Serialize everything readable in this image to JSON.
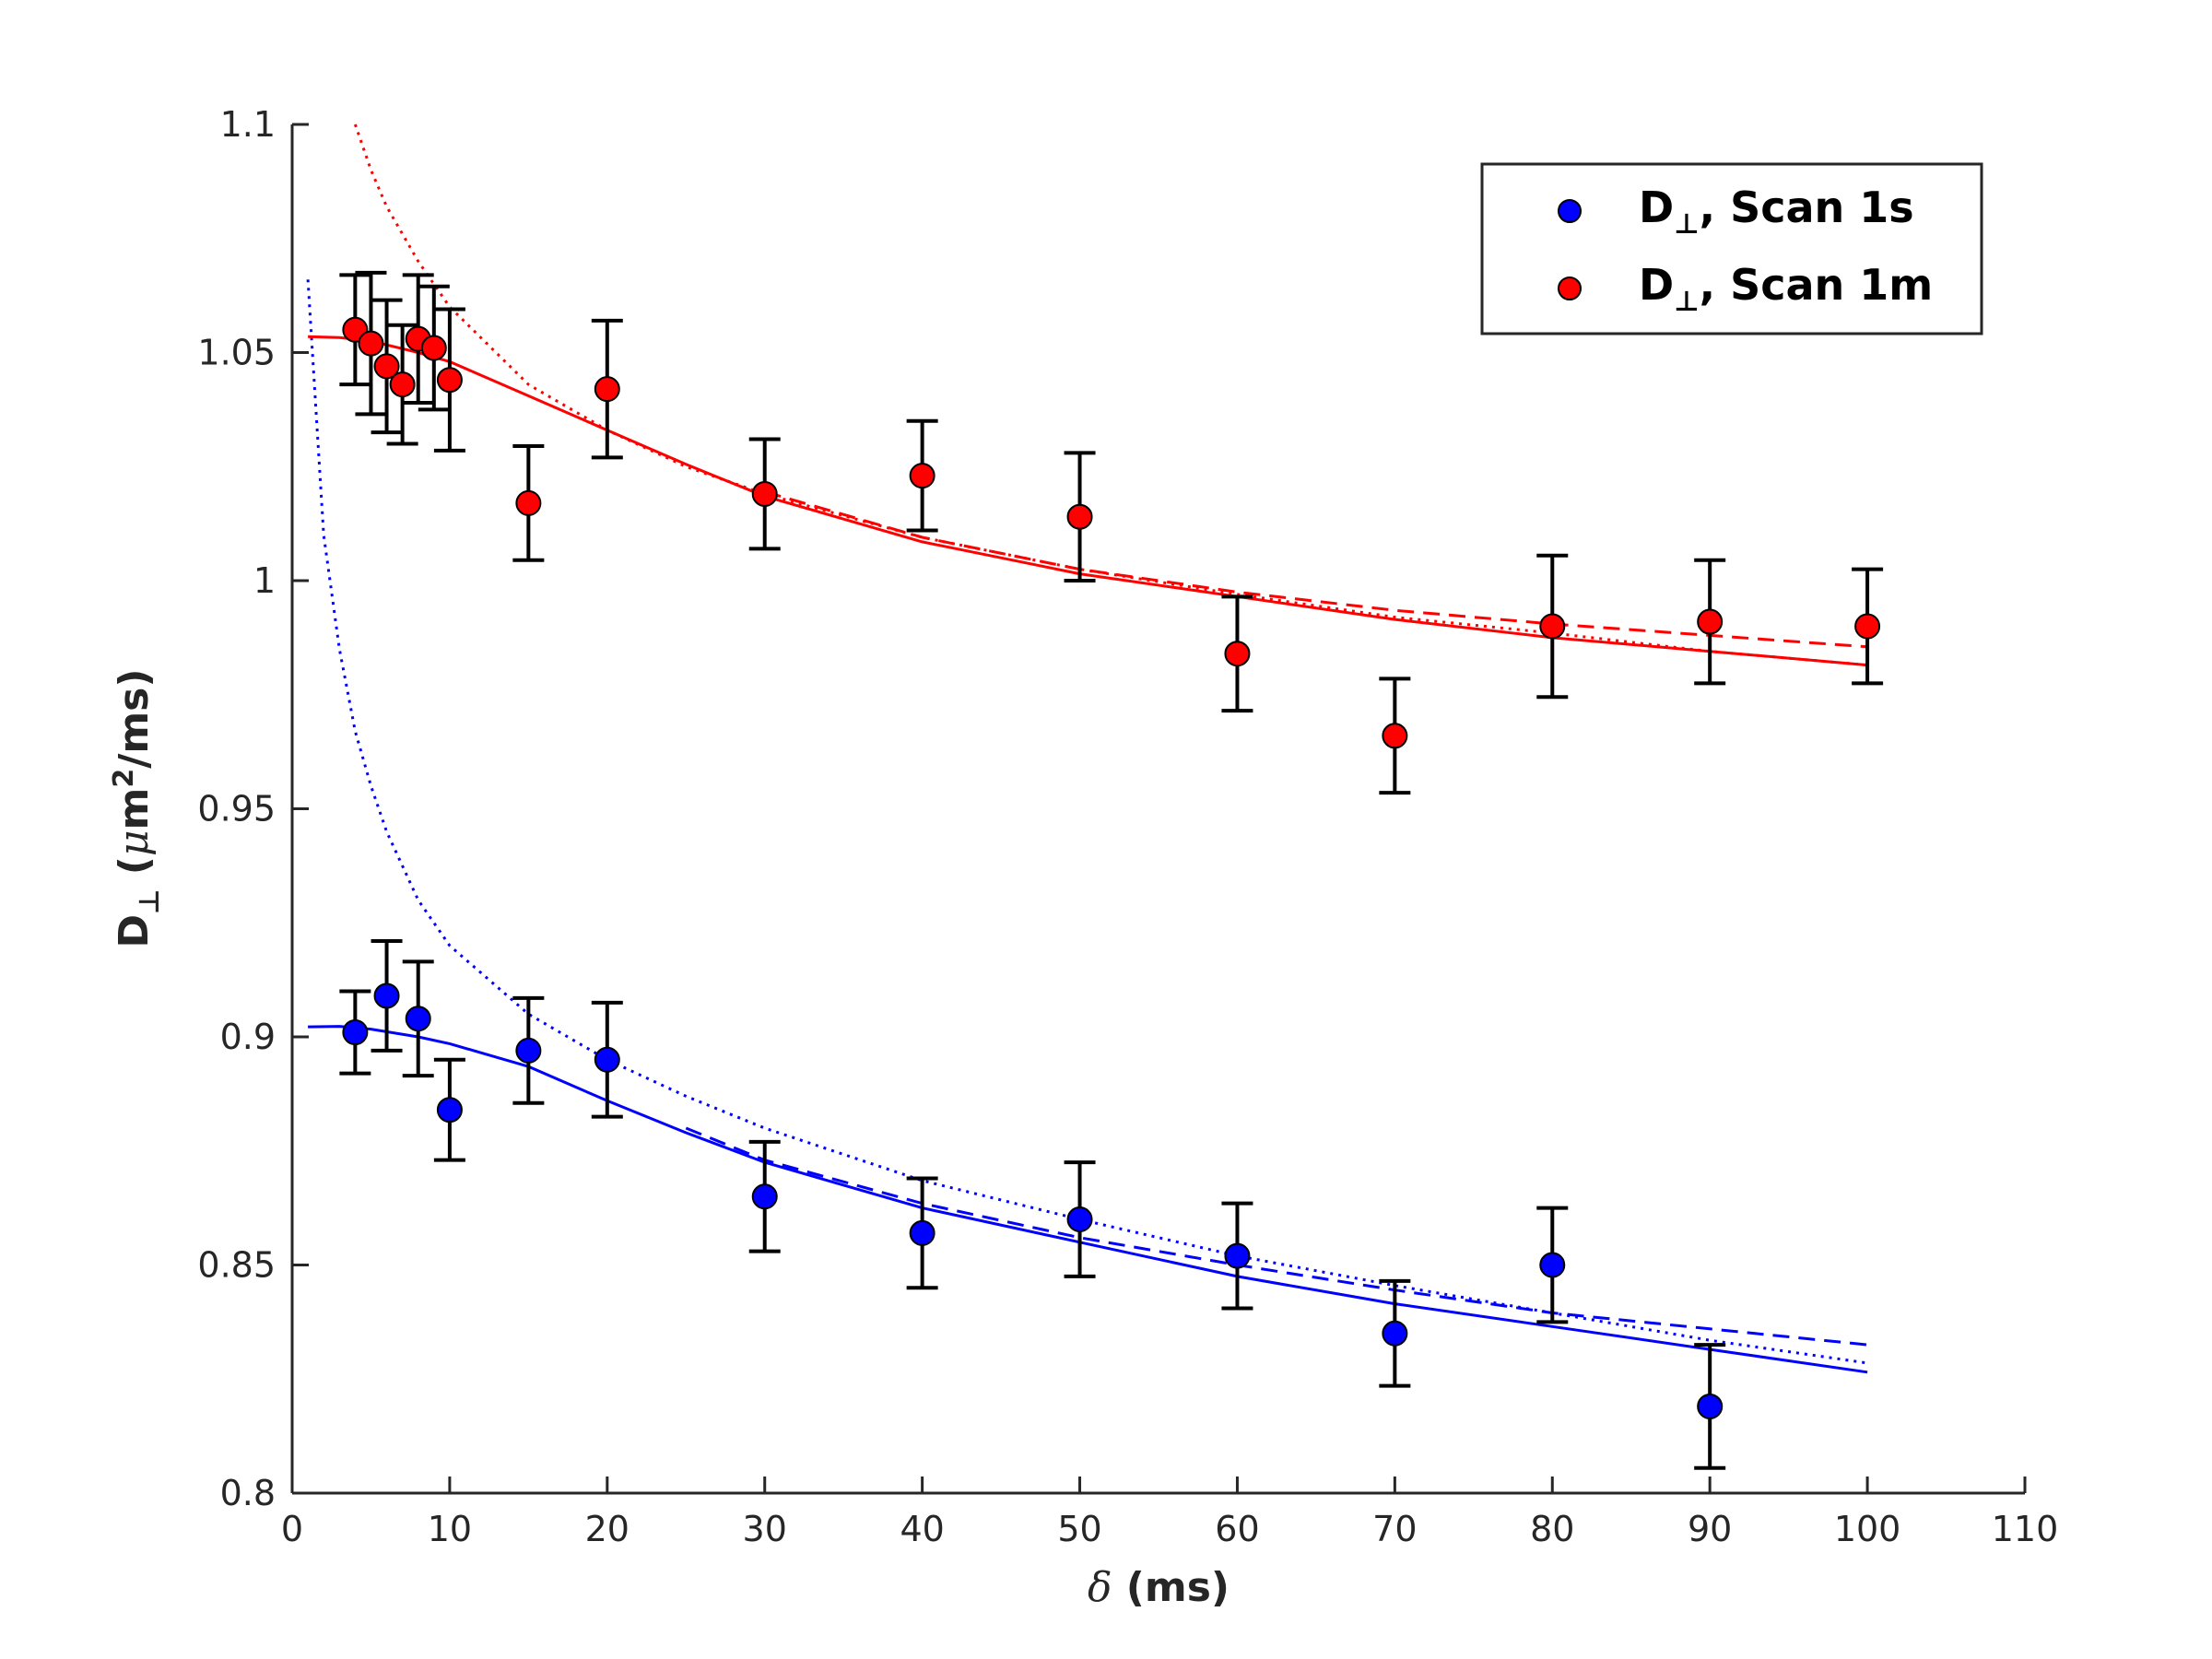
{
  "chart_data": {
    "type": "scatter",
    "title": "",
    "xlabel": {
      "symbol": "δ",
      "unit": " (ms)"
    },
    "ylabel": {
      "main": "D",
      "sub": "⊥",
      "unit_pre": " (",
      "mu": "μ",
      "unit_mid": "m",
      "sup": "2",
      "unit_post": "/ms)"
    },
    "xlim": [
      0,
      110
    ],
    "ylim": [
      0.8,
      1.1
    ],
    "xticks": [
      0,
      10,
      20,
      30,
      40,
      50,
      60,
      70,
      80,
      90,
      100,
      110
    ],
    "yticks": [
      0.8,
      0.85,
      0.9,
      0.95,
      1,
      1.05,
      1.1
    ],
    "xtick_labels": [
      "0",
      "10",
      "20",
      "30",
      "40",
      "50",
      "60",
      "70",
      "80",
      "90",
      "100",
      "110"
    ],
    "ytick_labels": [
      "0.8",
      "0.85",
      "0.9",
      "0.95",
      "1",
      "1.05",
      "1.1"
    ],
    "grid": false,
    "legend": {
      "position": "top-right",
      "entries": [
        {
          "main": "D",
          "sub": "⊥",
          "rest": ", Scan 1s",
          "color": "#0000ff"
        },
        {
          "main": "D",
          "sub": "⊥",
          "rest": ", Scan 1m",
          "color": "#ff0000"
        }
      ]
    },
    "series": [
      {
        "name": "D⊥, Scan 1s",
        "color": "#0000ff",
        "x": [
          4,
          6,
          8,
          10,
          15,
          20,
          30,
          40,
          50,
          60,
          70,
          80,
          90
        ],
        "y": [
          0.901,
          0.909,
          0.904,
          0.884,
          0.897,
          0.895,
          0.865,
          0.857,
          0.86,
          0.852,
          0.835,
          0.85,
          0.819
        ],
        "err": [
          0.009,
          0.012,
          0.0125,
          0.011,
          0.0115,
          0.0125,
          0.012,
          0.012,
          0.0125,
          0.0115,
          0.0115,
          0.0125,
          0.0135
        ],
        "fits": {
          "solid": {
            "x": [
              1,
              3,
              5,
              8,
              10,
              15,
              20,
              25,
              30,
              40,
              50,
              60,
              70,
              80,
              90,
              100
            ],
            "y": [
              0.9022,
              0.9023,
              0.9017,
              0.9,
              0.8985,
              0.8935,
              0.886,
              0.879,
              0.8725,
              0.8625,
              0.855,
              0.8475,
              0.8415,
              0.8365,
              0.8315,
              0.8265
            ]
          },
          "dashed": {
            "x": [
              25,
              30,
              40,
              50,
              60,
              70,
              80,
              90,
              100
            ],
            "y": [
              0.88,
              0.873,
              0.8635,
              0.856,
              0.85,
              0.8445,
              0.8395,
              0.836,
              0.8325
            ]
          },
          "dotted": {
            "x": [
              1,
              2,
              3,
              4,
              5,
              6,
              8,
              10,
              15,
              20,
              25,
              30,
              40,
              50,
              60,
              70,
              80,
              90,
              100
            ],
            "y": [
              1.066,
              1.01,
              0.985,
              0.967,
              0.955,
              0.945,
              0.93,
              0.92,
              0.905,
              0.895,
              0.887,
              0.88,
              0.8685,
              0.86,
              0.852,
              0.8455,
              0.8395,
              0.8335,
              0.8285
            ]
          }
        }
      },
      {
        "name": "D⊥, Scan 1m",
        "color": "#ff0000",
        "x": [
          4,
          5,
          6,
          7,
          8,
          9,
          10,
          15,
          20,
          30,
          40,
          50,
          60,
          70,
          80,
          90,
          100
        ],
        "y": [
          1.055,
          1.052,
          1.047,
          1.043,
          1.053,
          1.051,
          1.044,
          1.017,
          1.042,
          1.019,
          1.023,
          1.014,
          0.984,
          0.966,
          0.99,
          0.991,
          0.99
        ],
        "err": [
          0.012,
          0.0155,
          0.0145,
          0.013,
          0.014,
          0.0135,
          0.0155,
          0.0125,
          0.015,
          0.012,
          0.012,
          0.014,
          0.0125,
          0.0125,
          0.0155,
          0.0135,
          0.0125
        ],
        "fits": {
          "solid": {
            "x": [
              1,
              3,
              5,
              8,
              10,
              15,
              20,
              25,
              30,
              40,
              50,
              60,
              70,
              80,
              90,
              100
            ],
            "y": [
              1.0535,
              1.0533,
              1.0525,
              1.05,
              1.048,
              1.0405,
              1.033,
              1.0255,
              1.0185,
              1.0085,
              1.0015,
              0.9965,
              0.9915,
              0.9875,
              0.9845,
              0.9815
            ]
          },
          "dashed": {
            "x": [
              30,
              40,
              50,
              60,
              70,
              80,
              90,
              100
            ],
            "y": [
              1.0195,
              1.0095,
              1.0025,
              0.9975,
              0.9935,
              0.9905,
              0.988,
              0.9855
            ]
          },
          "dotted": {
            "x": [
              4,
              5,
              6,
              8,
              10,
              15,
              20,
              25,
              30,
              40,
              50,
              60,
              70,
              80,
              90,
              100
            ],
            "y": [
              1.1,
              1.09,
              1.082,
              1.07,
              1.06,
              1.043,
              1.033,
              1.025,
              1.019,
              1.0095,
              1.0025,
              0.997,
              0.992,
              0.9885,
              0.9845,
              0.9815
            ]
          }
        }
      }
    ]
  }
}
